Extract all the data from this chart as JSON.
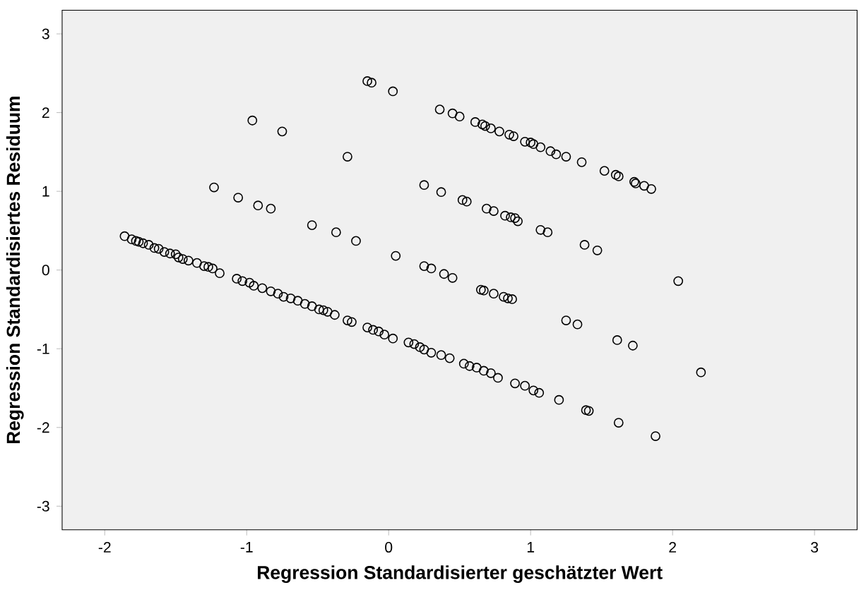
{
  "chart_data": {
    "type": "scatter",
    "xlabel": "Regression Standardisierter geschätzter Wert",
    "ylabel": "Regression Standardisiertes Residuum",
    "xlim": [
      -2.3,
      3.3
    ],
    "ylim": [
      -3.3,
      3.3
    ],
    "xticks": [
      -2,
      -1,
      0,
      1,
      2,
      3
    ],
    "yticks": [
      -3,
      -2,
      -1,
      0,
      1,
      2,
      3
    ],
    "marker": "circle",
    "series": [
      {
        "color": "#000000",
        "x": [
          -0.15,
          -0.12,
          0.03,
          0.36,
          0.45,
          0.5,
          0.61,
          0.66,
          0.68,
          0.72,
          0.78,
          0.85,
          0.88,
          0.96,
          1.0,
          1.02,
          1.07,
          1.14,
          1.18,
          1.25,
          1.36,
          1.52,
          1.6,
          1.62,
          1.73,
          1.74,
          1.8,
          1.85,
          -0.96,
          -0.75,
          -0.29,
          0.25,
          0.37,
          0.52,
          0.55,
          0.69,
          0.74,
          0.82,
          0.86,
          0.89,
          0.91,
          1.07,
          1.12,
          1.38,
          1.47,
          2.04,
          -1.23,
          -1.06,
          -0.92,
          -0.83,
          -0.54,
          -0.37,
          -0.23,
          0.05,
          0.25,
          0.3,
          0.39,
          0.45,
          0.65,
          0.67,
          0.74,
          0.81,
          0.84,
          0.87,
          1.25,
          1.33,
          1.61,
          1.72,
          2.2,
          -1.86,
          -1.81,
          -1.78,
          -1.76,
          -1.73,
          -1.69,
          -1.65,
          -1.62,
          -1.58,
          -1.54,
          -1.5,
          -1.48,
          -1.45,
          -1.41,
          -1.35,
          -1.3,
          -1.27,
          -1.24,
          -1.19,
          -1.07,
          -1.03,
          -0.98,
          -0.95,
          -0.89,
          -0.83,
          -0.78,
          -0.74,
          -0.69,
          -0.64,
          -0.59,
          -0.54,
          -0.49,
          -0.46,
          -0.43,
          -0.38,
          -0.29,
          -0.26,
          -0.15,
          -0.11,
          -0.07,
          -0.03,
          0.03,
          0.14,
          0.18,
          0.22,
          0.25,
          0.3,
          0.37,
          0.43,
          0.53,
          0.57,
          0.62,
          0.67,
          0.72,
          0.77,
          0.89,
          0.96,
          1.02,
          1.06,
          1.2,
          1.39,
          1.41,
          1.62,
          1.88
        ],
        "values": [
          2.4,
          2.38,
          2.27,
          2.04,
          1.99,
          1.95,
          1.88,
          1.85,
          1.83,
          1.8,
          1.76,
          1.72,
          1.7,
          1.63,
          1.62,
          1.6,
          1.56,
          1.51,
          1.47,
          1.44,
          1.37,
          1.26,
          1.21,
          1.19,
          1.12,
          1.1,
          1.07,
          1.03,
          1.9,
          1.76,
          1.44,
          1.08,
          0.99,
          0.89,
          0.87,
          0.78,
          0.75,
          0.69,
          0.67,
          0.66,
          0.62,
          0.51,
          0.48,
          0.32,
          0.25,
          -0.14,
          1.05,
          0.92,
          0.82,
          0.78,
          0.57,
          0.48,
          0.37,
          0.18,
          0.05,
          0.02,
          -0.05,
          -0.1,
          -0.25,
          -0.26,
          -0.3,
          -0.34,
          -0.36,
          -0.37,
          -0.64,
          -0.69,
          -0.89,
          -0.96,
          -1.3,
          0.43,
          0.39,
          0.37,
          0.36,
          0.34,
          0.32,
          0.28,
          0.27,
          0.23,
          0.21,
          0.2,
          0.16,
          0.14,
          0.12,
          0.09,
          0.05,
          0.04,
          0.02,
          -0.04,
          -0.11,
          -0.14,
          -0.16,
          -0.2,
          -0.23,
          -0.27,
          -0.3,
          -0.34,
          -0.36,
          -0.39,
          -0.43,
          -0.46,
          -0.5,
          -0.51,
          -0.53,
          -0.57,
          -0.64,
          -0.66,
          -0.73,
          -0.76,
          -0.78,
          -0.82,
          -0.87,
          -0.92,
          -0.94,
          -0.98,
          -1.01,
          -1.05,
          -1.08,
          -1.12,
          -1.19,
          -1.22,
          -1.24,
          -1.28,
          -1.31,
          -1.37,
          -1.44,
          -1.47,
          -1.53,
          -1.56,
          -1.65,
          -1.78,
          -1.79,
          -1.94,
          -2.11
        ]
      }
    ]
  }
}
